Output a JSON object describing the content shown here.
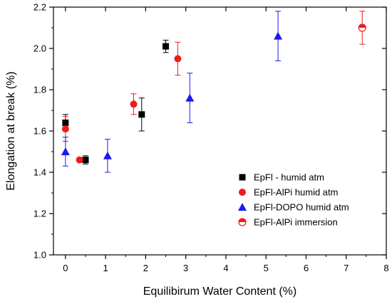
{
  "chart_data": {
    "type": "scatter",
    "title": "",
    "xlabel": "Equilibirum Water Content (%)",
    "ylabel": "Elongation at break (%)",
    "xlim": [
      -0.3,
      8
    ],
    "ylim": [
      1.0,
      2.2
    ],
    "xticks": [
      "0",
      "1",
      "2",
      "3",
      "4",
      "5",
      "6",
      "7",
      "8"
    ],
    "yticks": [
      "1.0",
      "1.2",
      "1.4",
      "1.6",
      "1.8",
      "2.0",
      "2.2"
    ],
    "grid": false,
    "legend_position": "lower-right",
    "series": [
      {
        "name": "EpFl - humid atm",
        "marker": "square",
        "color": "#000000",
        "points": [
          {
            "x": 0.0,
            "y": 1.64,
            "err": 0.04
          },
          {
            "x": 0.5,
            "y": 1.46,
            "err": 0.02
          },
          {
            "x": 1.9,
            "y": 1.68,
            "err": 0.08
          },
          {
            "x": 2.5,
            "y": 2.01,
            "err": 0.03
          }
        ]
      },
      {
        "name": "EpFl-AlPi humid atm",
        "marker": "circle",
        "color": "#ee1c1c",
        "points": [
          {
            "x": 0.0,
            "y": 1.61,
            "err": 0.06
          },
          {
            "x": 0.35,
            "y": 1.46,
            "err": 0.01
          },
          {
            "x": 1.7,
            "y": 1.73,
            "err": 0.05
          },
          {
            "x": 2.8,
            "y": 1.95,
            "err": 0.08
          }
        ]
      },
      {
        "name": "EpFl-DOPO humid atm",
        "marker": "triangle",
        "color": "#1a1aee",
        "points": [
          {
            "x": 0.0,
            "y": 1.5,
            "err": 0.07
          },
          {
            "x": 1.05,
            "y": 1.48,
            "err": 0.08
          },
          {
            "x": 3.1,
            "y": 1.76,
            "err": 0.12
          },
          {
            "x": 5.3,
            "y": 2.06,
            "err": 0.12
          }
        ]
      },
      {
        "name": "EpFl-AlPi immersion",
        "marker": "half-circle",
        "color": "#ee1c1c",
        "points": [
          {
            "x": 7.4,
            "y": 2.1,
            "err": 0.08
          }
        ]
      }
    ]
  }
}
